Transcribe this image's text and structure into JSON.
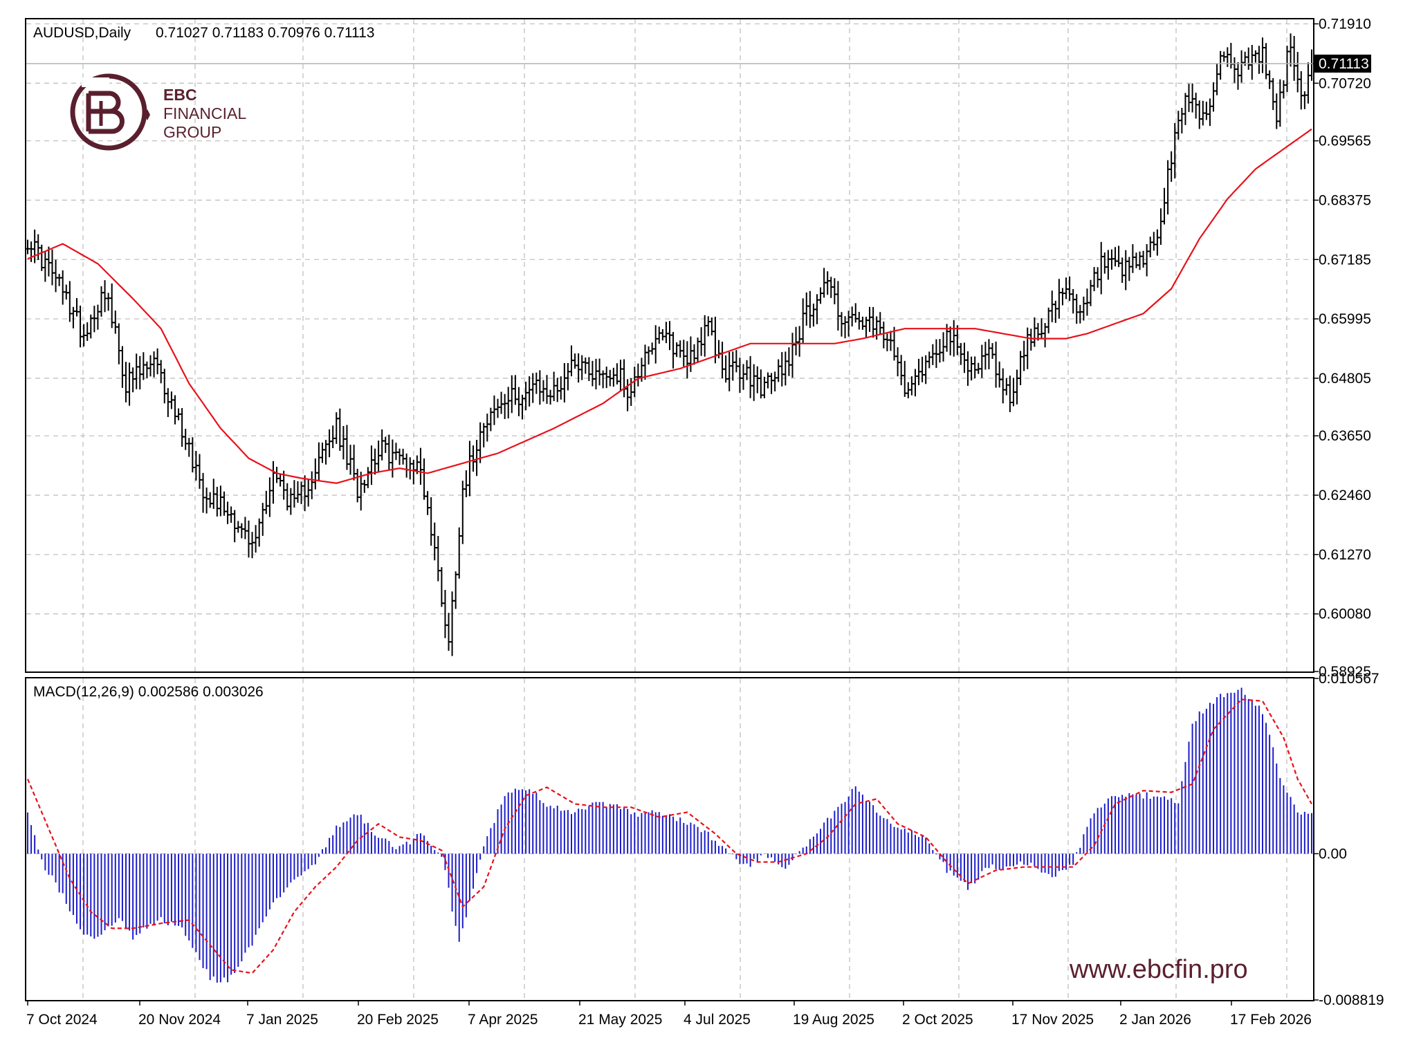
{
  "colors": {
    "background": "#ffffff",
    "grid": "#c0c0c0",
    "price_bars": "#000000",
    "moving_average": "#e8111a",
    "macd_histogram": "#1c1cc8",
    "macd_signal": "#e8111a",
    "brand": "#5a1f2e"
  },
  "header": {
    "symbol_text": "AUDUSD,Daily",
    "ohlc_text": "0.71027 0.71183 0.70976 0.71113"
  },
  "logo": {
    "icon": "ebc-logo-icon",
    "line1": "EBC",
    "line2": "FINANCIAL",
    "line3": "GROUP"
  },
  "watermark": {
    "text": "www.ebcfin.pro"
  },
  "current_price_label": "0.71113",
  "macd_label": "MACD(12,26,9) 0.002586 0.003026",
  "chart_data": [
    {
      "type": "ohlc",
      "title": "AUDUSD,Daily",
      "ylim": [
        0.58925,
        0.72
      ],
      "y_ticks": [
        "0.71910",
        "0.70720",
        "0.69565",
        "0.68375",
        "0.67185",
        "0.65995",
        "0.64805",
        "0.63650",
        "0.62460",
        "0.61270",
        "0.60080",
        "0.58925"
      ],
      "x_ticks": [
        "7 Oct 2024",
        "20 Nov 2024",
        "7 Jan 2025",
        "20 Feb 2025",
        "7 Apr 2025",
        "21 May 2025",
        "4 Jul 2025",
        "19 Aug 2025",
        "2 Oct 2025",
        "17 Nov 2025",
        "2 Jan 2026",
        "17 Feb 2026"
      ],
      "last_close": 0.71113,
      "price_keypoints": [
        [
          0,
          0.676
        ],
        [
          8,
          0.668
        ],
        [
          16,
          0.657
        ],
        [
          22,
          0.666
        ],
        [
          28,
          0.647
        ],
        [
          36,
          0.651
        ],
        [
          44,
          0.638
        ],
        [
          50,
          0.626
        ],
        [
          58,
          0.621
        ],
        [
          64,
          0.614
        ],
        [
          70,
          0.629
        ],
        [
          76,
          0.622
        ],
        [
          82,
          0.63
        ],
        [
          88,
          0.638
        ],
        [
          94,
          0.626
        ],
        [
          100,
          0.634
        ],
        [
          106,
          0.632
        ],
        [
          112,
          0.63
        ],
        [
          117,
          0.609
        ],
        [
          120,
          0.595
        ],
        [
          124,
          0.626
        ],
        [
          130,
          0.64
        ],
        [
          138,
          0.644
        ],
        [
          144,
          0.646
        ],
        [
          150,
          0.645
        ],
        [
          156,
          0.652
        ],
        [
          162,
          0.649
        ],
        [
          168,
          0.649
        ],
        [
          172,
          0.645
        ],
        [
          176,
          0.654
        ],
        [
          182,
          0.656
        ],
        [
          188,
          0.652
        ],
        [
          194,
          0.658
        ],
        [
          198,
          0.65
        ],
        [
          204,
          0.649
        ],
        [
          210,
          0.646
        ],
        [
          216,
          0.651
        ],
        [
          222,
          0.661
        ],
        [
          228,
          0.668
        ],
        [
          232,
          0.66
        ],
        [
          238,
          0.659
        ],
        [
          244,
          0.657
        ],
        [
          250,
          0.647
        ],
        [
          256,
          0.651
        ],
        [
          262,
          0.657
        ],
        [
          268,
          0.65
        ],
        [
          274,
          0.653
        ],
        [
          280,
          0.644
        ],
        [
          284,
          0.654
        ],
        [
          290,
          0.66
        ],
        [
          296,
          0.665
        ],
        [
          300,
          0.66
        ],
        [
          306,
          0.671
        ],
        [
          312,
          0.669
        ],
        [
          318,
          0.672
        ],
        [
          322,
          0.676
        ],
        [
          326,
          0.692
        ],
        [
          330,
          0.705
        ],
        [
          336,
          0.7
        ],
        [
          340,
          0.713
        ],
        [
          346,
          0.71
        ],
        [
          352,
          0.713
        ],
        [
          356,
          0.7
        ],
        [
          360,
          0.716
        ],
        [
          363,
          0.703
        ],
        [
          366,
          0.711
        ]
      ],
      "ma_keypoints": [
        [
          0,
          0.672
        ],
        [
          10,
          0.675
        ],
        [
          20,
          0.671
        ],
        [
          30,
          0.664
        ],
        [
          38,
          0.658
        ],
        [
          46,
          0.647
        ],
        [
          55,
          0.638
        ],
        [
          63,
          0.632
        ],
        [
          71,
          0.629
        ],
        [
          78,
          0.628
        ],
        [
          88,
          0.627
        ],
        [
          98,
          0.629
        ],
        [
          106,
          0.63
        ],
        [
          114,
          0.629
        ],
        [
          124,
          0.631
        ],
        [
          134,
          0.633
        ],
        [
          150,
          0.638
        ],
        [
          164,
          0.643
        ],
        [
          174,
          0.648
        ],
        [
          186,
          0.65
        ],
        [
          198,
          0.653
        ],
        [
          206,
          0.655
        ],
        [
          218,
          0.655
        ],
        [
          230,
          0.655
        ],
        [
          238,
          0.656
        ],
        [
          250,
          0.658
        ],
        [
          262,
          0.658
        ],
        [
          270,
          0.658
        ],
        [
          278,
          0.657
        ],
        [
          286,
          0.656
        ],
        [
          296,
          0.656
        ],
        [
          302,
          0.657
        ],
        [
          310,
          0.659
        ],
        [
          318,
          0.661
        ],
        [
          326,
          0.666
        ],
        [
          334,
          0.676
        ],
        [
          342,
          0.684
        ],
        [
          350,
          0.69
        ],
        [
          358,
          0.694
        ],
        [
          366,
          0.698
        ]
      ],
      "moving_average_label": ""
    },
    {
      "type": "bar",
      "title": "MACD(12,26,9) 0.002586 0.003026",
      "ylim": [
        -0.008819,
        0.010567
      ],
      "y_ticks": [
        "0.010567",
        "0.00",
        "-0.008819"
      ],
      "macd_last": 0.002586,
      "signal_last": 0.003026,
      "macd_keypoints": [
        [
          0,
          0.0025
        ],
        [
          4,
          -0.0005
        ],
        [
          10,
          -0.0025
        ],
        [
          16,
          -0.005
        ],
        [
          20,
          -0.005
        ],
        [
          26,
          -0.004
        ],
        [
          30,
          -0.005
        ],
        [
          38,
          -0.004
        ],
        [
          44,
          -0.0045
        ],
        [
          52,
          -0.0075
        ],
        [
          57,
          -0.0077
        ],
        [
          64,
          -0.0055
        ],
        [
          70,
          -0.003
        ],
        [
          76,
          -0.0015
        ],
        [
          82,
          -0.0005
        ],
        [
          88,
          0.0015
        ],
        [
          94,
          0.0025
        ],
        [
          100,
          0.001
        ],
        [
          106,
          0.0003
        ],
        [
          112,
          0.0012
        ],
        [
          118,
          0.0
        ],
        [
          123,
          -0.0055
        ],
        [
          130,
          0.0005
        ],
        [
          136,
          0.0035
        ],
        [
          142,
          0.004
        ],
        [
          148,
          0.003
        ],
        [
          156,
          0.0025
        ],
        [
          162,
          0.003
        ],
        [
          168,
          0.0028
        ],
        [
          174,
          0.0023
        ],
        [
          180,
          0.0025
        ],
        [
          186,
          0.002
        ],
        [
          192,
          0.0015
        ],
        [
          198,
          0.0005
        ],
        [
          204,
          -0.0008
        ],
        [
          210,
          -0.0002
        ],
        [
          216,
          -0.0008
        ],
        [
          222,
          0.0005
        ],
        [
          228,
          0.002
        ],
        [
          236,
          0.004
        ],
        [
          242,
          0.0025
        ],
        [
          248,
          0.0015
        ],
        [
          256,
          0.001
        ],
        [
          262,
          -0.001
        ],
        [
          268,
          -0.002
        ],
        [
          274,
          -0.0008
        ],
        [
          280,
          -0.0008
        ],
        [
          286,
          -0.0005
        ],
        [
          292,
          -0.0015
        ],
        [
          298,
          -0.0005
        ],
        [
          304,
          0.0025
        ],
        [
          310,
          0.0035
        ],
        [
          316,
          0.0035
        ],
        [
          322,
          0.0035
        ],
        [
          328,
          0.003
        ],
        [
          332,
          0.008
        ],
        [
          340,
          0.0095
        ],
        [
          346,
          0.01
        ],
        [
          352,
          0.0085
        ],
        [
          358,
          0.004
        ],
        [
          362,
          0.0025
        ],
        [
          366,
          0.0026
        ]
      ],
      "signal_keypoints": [
        [
          0,
          0.0045
        ],
        [
          6,
          0.0015
        ],
        [
          12,
          -0.0015
        ],
        [
          18,
          -0.0035
        ],
        [
          24,
          -0.0045
        ],
        [
          30,
          -0.0045
        ],
        [
          38,
          -0.0042
        ],
        [
          46,
          -0.004
        ],
        [
          52,
          -0.0055
        ],
        [
          58,
          -0.007
        ],
        [
          64,
          -0.0072
        ],
        [
          70,
          -0.0058
        ],
        [
          76,
          -0.0035
        ],
        [
          82,
          -0.002
        ],
        [
          88,
          -0.0008
        ],
        [
          94,
          0.0008
        ],
        [
          100,
          0.0018
        ],
        [
          106,
          0.001
        ],
        [
          112,
          0.0008
        ],
        [
          118,
          0.0002
        ],
        [
          124,
          -0.0032
        ],
        [
          130,
          -0.002
        ],
        [
          136,
          0.0015
        ],
        [
          142,
          0.0035
        ],
        [
          148,
          0.004
        ],
        [
          156,
          0.003
        ],
        [
          164,
          0.0028
        ],
        [
          172,
          0.0028
        ],
        [
          180,
          0.0022
        ],
        [
          188,
          0.0025
        ],
        [
          196,
          0.0012
        ],
        [
          202,
          0.0
        ],
        [
          208,
          -0.0005
        ],
        [
          214,
          -0.0005
        ],
        [
          222,
          0.0
        ],
        [
          228,
          0.001
        ],
        [
          236,
          0.003
        ],
        [
          242,
          0.0033
        ],
        [
          248,
          0.0018
        ],
        [
          256,
          0.001
        ],
        [
          262,
          -0.0005
        ],
        [
          268,
          -0.0018
        ],
        [
          276,
          -0.001
        ],
        [
          284,
          -0.0008
        ],
        [
          292,
          -0.0008
        ],
        [
          298,
          -0.0008
        ],
        [
          304,
          0.0005
        ],
        [
          310,
          0.003
        ],
        [
          318,
          0.0038
        ],
        [
          326,
          0.0037
        ],
        [
          332,
          0.0042
        ],
        [
          338,
          0.0075
        ],
        [
          346,
          0.0093
        ],
        [
          352,
          0.0092
        ],
        [
          358,
          0.007
        ],
        [
          362,
          0.0045
        ],
        [
          366,
          0.003
        ]
      ]
    }
  ]
}
